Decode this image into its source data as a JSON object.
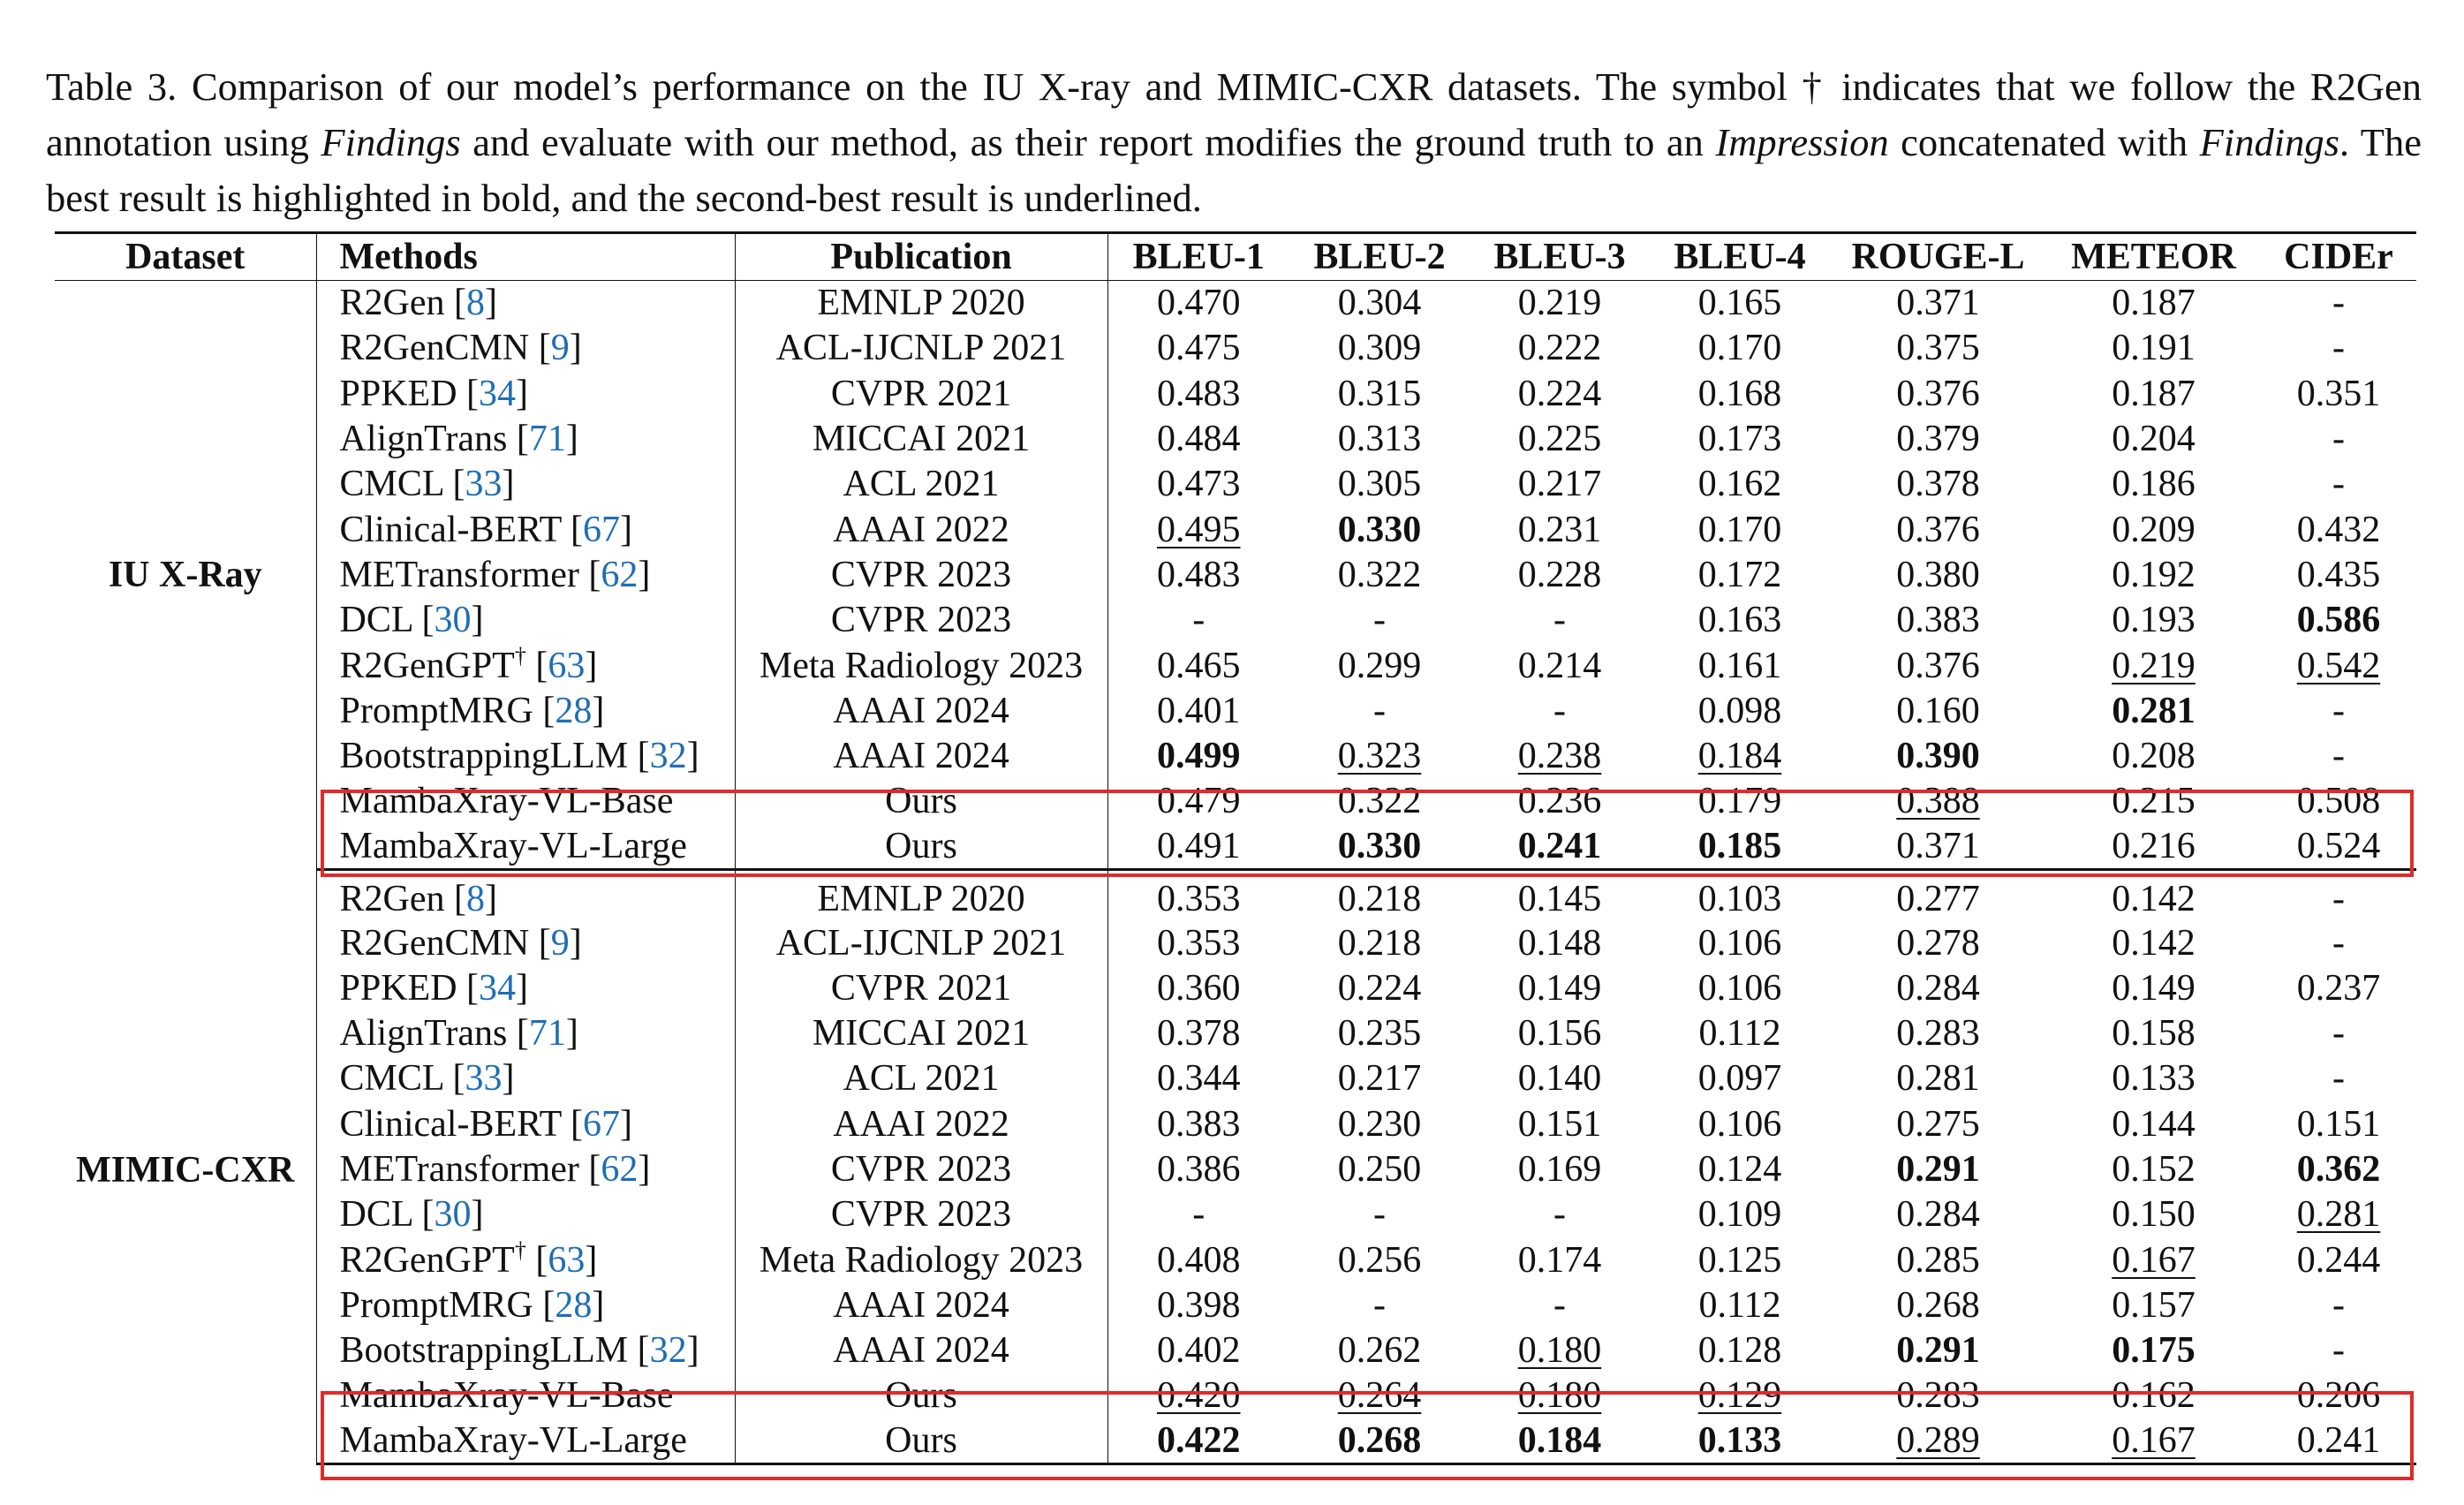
{
  "caption": {
    "label": "Table 3.",
    "part1": " Comparison of our model’s performance on the IU X-ray and MIMIC-CXR datasets. The symbol † indicates that we follow the R2Gen annotation using ",
    "em1": "Findings",
    "part2": " and evaluate with our method, as their report modifies the ground truth to an ",
    "em2": "Impression",
    "part3": " concatenated with ",
    "em3": "Findings",
    "part4": ". The best result is highlighted in bold, and the second-best result is underlined."
  },
  "columns": [
    "Dataset",
    "Methods",
    "Publication",
    "BLEU-1",
    "BLEU-2",
    "BLEU-3",
    "BLEU-4",
    "ROUGE-L",
    "METEOR",
    "CIDEr"
  ],
  "sections": [
    {
      "dataset": "IU X-Ray",
      "rows": [
        {
          "method": "R2Gen",
          "dagger": "",
          "cite": "8",
          "pub": "EMNLP 2020",
          "scores": [
            "0.470",
            "0.304",
            "0.219",
            "0.165",
            "0.371",
            "0.187",
            "-"
          ],
          "bold": [],
          "underline": []
        },
        {
          "method": "R2GenCMN",
          "dagger": "",
          "cite": "9",
          "pub": "ACL-IJCNLP 2021",
          "scores": [
            "0.475",
            "0.309",
            "0.222",
            "0.170",
            "0.375",
            "0.191",
            "-"
          ],
          "bold": [],
          "underline": []
        },
        {
          "method": "PPKED",
          "dagger": "",
          "cite": "34",
          "pub": "CVPR 2021",
          "scores": [
            "0.483",
            "0.315",
            "0.224",
            "0.168",
            "0.376",
            "0.187",
            "0.351"
          ],
          "bold": [],
          "underline": []
        },
        {
          "method": "AlignTrans",
          "dagger": "",
          "cite": "71",
          "pub": "MICCAI 2021",
          "scores": [
            "0.484",
            "0.313",
            "0.225",
            "0.173",
            "0.379",
            "0.204",
            "-"
          ],
          "bold": [],
          "underline": []
        },
        {
          "method": "CMCL",
          "dagger": "",
          "cite": "33",
          "pub": "ACL 2021",
          "scores": [
            "0.473",
            "0.305",
            "0.217",
            "0.162",
            "0.378",
            "0.186",
            "-"
          ],
          "bold": [],
          "underline": []
        },
        {
          "method": "Clinical-BERT",
          "dagger": "",
          "cite": "67",
          "pub": "AAAI 2022",
          "scores": [
            "0.495",
            "0.330",
            "0.231",
            "0.170",
            "0.376",
            "0.209",
            "0.432"
          ],
          "bold": [
            1
          ],
          "underline": [
            0
          ]
        },
        {
          "method": "METransformer",
          "dagger": "",
          "cite": "62",
          "pub": "CVPR 2023",
          "scores": [
            "0.483",
            "0.322",
            "0.228",
            "0.172",
            "0.380",
            "0.192",
            "0.435"
          ],
          "bold": [],
          "underline": []
        },
        {
          "method": "DCL",
          "dagger": "",
          "cite": "30",
          "pub": "CVPR 2023",
          "scores": [
            "-",
            "-",
            "-",
            "0.163",
            "0.383",
            "0.193",
            "0.586"
          ],
          "bold": [
            6
          ],
          "underline": []
        },
        {
          "method": "R2GenGPT",
          "dagger": "†",
          "cite": "63",
          "pub": "Meta Radiology 2023",
          "scores": [
            "0.465",
            "0.299",
            "0.214",
            "0.161",
            "0.376",
            "0.219",
            "0.542"
          ],
          "bold": [],
          "underline": [
            5,
            6
          ]
        },
        {
          "method": "PromptMRG",
          "dagger": "",
          "cite": "28",
          "pub": "AAAI 2024",
          "scores": [
            "0.401",
            "-",
            "-",
            "0.098",
            "0.160",
            "0.281",
            "-"
          ],
          "bold": [
            5
          ],
          "underline": []
        },
        {
          "method": "BootstrappingLLM",
          "dagger": "",
          "cite": "32",
          "pub": "AAAI 2024",
          "scores": [
            "0.499",
            "0.323",
            "0.238",
            "0.184",
            "0.390",
            "0.208",
            "-"
          ],
          "bold": [
            0,
            4
          ],
          "underline": [
            1,
            2,
            3
          ]
        },
        {
          "method": "MambaXray-VL-Base",
          "dagger": "",
          "cite": "",
          "pub": "Ours",
          "scores": [
            "0.479",
            "0.322",
            "0.236",
            "0.179",
            "0.388",
            "0.215",
            "0.508"
          ],
          "bold": [],
          "underline": [
            4
          ]
        },
        {
          "method": "MambaXray-VL-Large",
          "dagger": "",
          "cite": "",
          "pub": "Ours",
          "scores": [
            "0.491",
            "0.330",
            "0.241",
            "0.185",
            "0.371",
            "0.216",
            "0.524"
          ],
          "bold": [
            1,
            2,
            3
          ],
          "underline": []
        }
      ]
    },
    {
      "dataset": "MIMIC-CXR",
      "rows": [
        {
          "method": "R2Gen",
          "dagger": "",
          "cite": "8",
          "pub": "EMNLP 2020",
          "scores": [
            "0.353",
            "0.218",
            "0.145",
            "0.103",
            "0.277",
            "0.142",
            "-"
          ],
          "bold": [],
          "underline": []
        },
        {
          "method": "R2GenCMN",
          "dagger": "",
          "cite": "9",
          "pub": "ACL-IJCNLP 2021",
          "scores": [
            "0.353",
            "0.218",
            "0.148",
            "0.106",
            "0.278",
            "0.142",
            "-"
          ],
          "bold": [],
          "underline": []
        },
        {
          "method": "PPKED",
          "dagger": "",
          "cite": "34",
          "pub": "CVPR 2021",
          "scores": [
            "0.360",
            "0.224",
            "0.149",
            "0.106",
            "0.284",
            "0.149",
            "0.237"
          ],
          "bold": [],
          "underline": []
        },
        {
          "method": "AlignTrans",
          "dagger": "",
          "cite": "71",
          "pub": "MICCAI 2021",
          "scores": [
            "0.378",
            "0.235",
            "0.156",
            "0.112",
            "0.283",
            "0.158",
            "-"
          ],
          "bold": [],
          "underline": []
        },
        {
          "method": "CMCL",
          "dagger": "",
          "cite": "33",
          "pub": "ACL 2021",
          "scores": [
            "0.344",
            "0.217",
            "0.140",
            "0.097",
            "0.281",
            "0.133",
            "-"
          ],
          "bold": [],
          "underline": []
        },
        {
          "method": "Clinical-BERT",
          "dagger": "",
          "cite": "67",
          "pub": "AAAI 2022",
          "scores": [
            "0.383",
            "0.230",
            "0.151",
            "0.106",
            "0.275",
            "0.144",
            "0.151"
          ],
          "bold": [],
          "underline": []
        },
        {
          "method": "METransformer",
          "dagger": "",
          "cite": "62",
          "pub": "CVPR 2023",
          "scores": [
            "0.386",
            "0.250",
            "0.169",
            "0.124",
            "0.291",
            "0.152",
            "0.362"
          ],
          "bold": [
            4,
            6
          ],
          "underline": []
        },
        {
          "method": "DCL",
          "dagger": "",
          "cite": "30",
          "pub": "CVPR 2023",
          "scores": [
            "-",
            "-",
            "-",
            "0.109",
            "0.284",
            "0.150",
            "0.281"
          ],
          "bold": [],
          "underline": [
            6
          ]
        },
        {
          "method": "R2GenGPT",
          "dagger": "†",
          "cite": "63",
          "pub": "Meta Radiology 2023",
          "scores": [
            "0.408",
            "0.256",
            "0.174",
            "0.125",
            "0.285",
            "0.167",
            "0.244"
          ],
          "bold": [],
          "underline": [
            5
          ]
        },
        {
          "method": "PromptMRG",
          "dagger": "",
          "cite": "28",
          "pub": "AAAI 2024",
          "scores": [
            "0.398",
            "-",
            "-",
            "0.112",
            "0.268",
            "0.157",
            "-"
          ],
          "bold": [],
          "underline": []
        },
        {
          "method": "BootstrappingLLM",
          "dagger": "",
          "cite": "32",
          "pub": "AAAI 2024",
          "scores": [
            "0.402",
            "0.262",
            "0.180",
            "0.128",
            "0.291",
            "0.175",
            "-"
          ],
          "bold": [
            4,
            5
          ],
          "underline": [
            2
          ]
        },
        {
          "method": "MambaXray-VL-Base",
          "dagger": "",
          "cite": "",
          "pub": "Ours",
          "scores": [
            "0.420",
            "0.264",
            "0.180",
            "0.129",
            "0.283",
            "0.162",
            "0.206"
          ],
          "bold": [],
          "underline": [
            0,
            1,
            2,
            3
          ]
        },
        {
          "method": "MambaXray-VL-Large",
          "dagger": "",
          "cite": "",
          "pub": "Ours",
          "scores": [
            "0.422",
            "0.268",
            "0.184",
            "0.133",
            "0.289",
            "0.167",
            "0.241"
          ],
          "bold": [
            0,
            1,
            2,
            3
          ],
          "underline": [
            4,
            5
          ]
        }
      ]
    }
  ],
  "colors": {
    "highlight_box": "#e02b2b",
    "citation": "#1f6eb5",
    "text": "#111111"
  }
}
